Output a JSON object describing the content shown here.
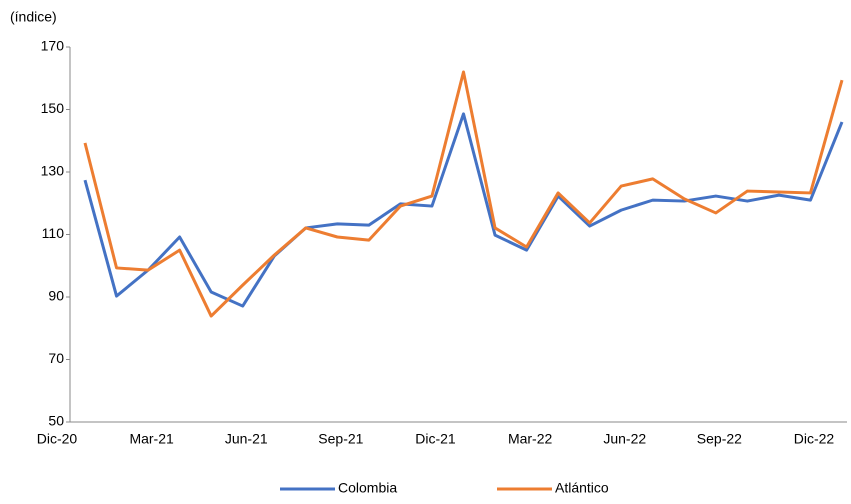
{
  "chart_data": {
    "type": "line",
    "y_label": "(índice)",
    "categories": [
      "Dic-20",
      null,
      null,
      "Mar-21",
      null,
      null,
      "Jun-21",
      null,
      null,
      "Sep-21",
      null,
      null,
      "Dic-21",
      null,
      null,
      "Mar-22",
      null,
      null,
      "Jun-22",
      null,
      null,
      "Sep-22",
      null,
      null,
      "Dic-22"
    ],
    "series": [
      {
        "name": "Colombia",
        "color": "#4472c4",
        "values": [
          127.4,
          90.3,
          98.6,
          109.2,
          91.6,
          87.1,
          103.1,
          112.1,
          113.4,
          113.0,
          119.8,
          119.1,
          148.6,
          109.8,
          105.0,
          122.3,
          112.7,
          117.8,
          121.0,
          120.7,
          122.3,
          120.7,
          122.6,
          121.0,
          146.0
        ]
      },
      {
        "name": "Atlántico",
        "color": "#ed7d31",
        "values": [
          139.3,
          99.3,
          98.6,
          105.0,
          83.9,
          93.8,
          103.4,
          112.1,
          109.2,
          108.2,
          119.1,
          122.3,
          162.0,
          112.1,
          106.0,
          123.3,
          113.7,
          125.5,
          127.8,
          121.4,
          116.9,
          123.9,
          123.6,
          123.3,
          159.4
        ]
      }
    ],
    "ylim": [
      50,
      170
    ],
    "yticks": [
      50,
      70,
      90,
      110,
      130,
      150,
      170
    ]
  }
}
